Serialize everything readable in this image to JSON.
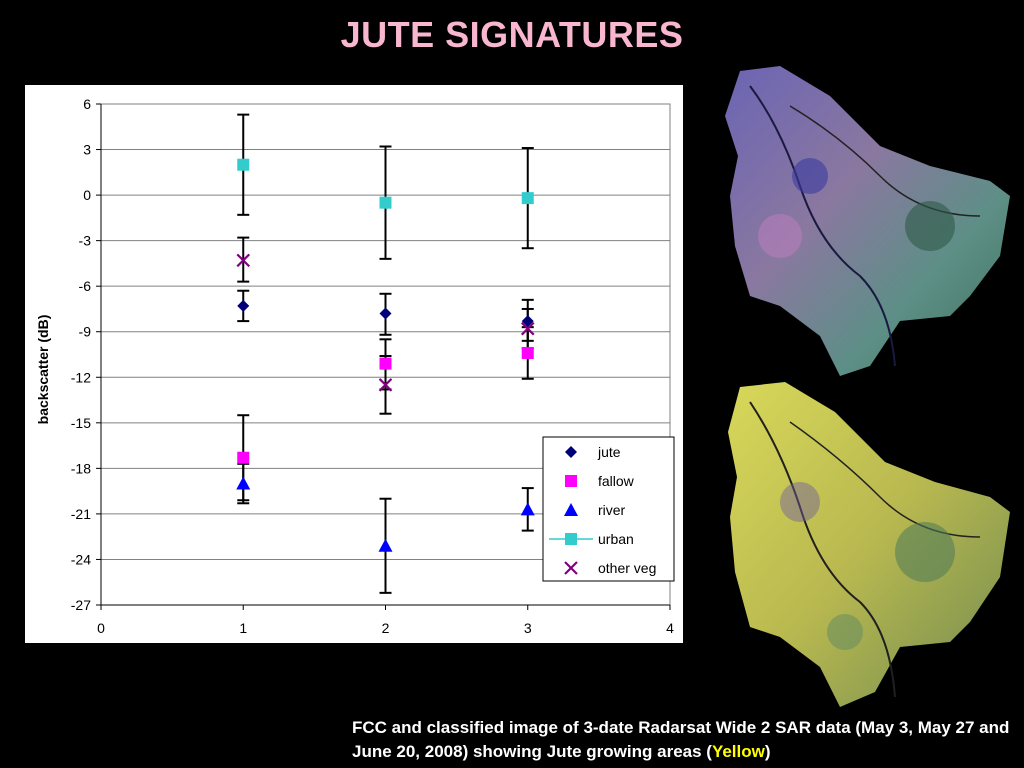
{
  "slide": {
    "title": "JUTE SIGNATURES"
  },
  "chart_data": {
    "type": "scatter",
    "title": "",
    "xlabel": "",
    "ylabel": "backscatter (dB)",
    "xlim": [
      0,
      4
    ],
    "ylim": [
      -27,
      6
    ],
    "xticks": [
      0,
      1,
      2,
      3,
      4
    ],
    "yticks": [
      6,
      3,
      0,
      -3,
      -6,
      -9,
      -12,
      -15,
      -18,
      -21,
      -24,
      -27
    ],
    "grid": "horizontal",
    "legend_position": "bottom-right",
    "series": [
      {
        "name": "jute",
        "marker": "diamond",
        "color": "#00007a",
        "points": [
          {
            "x": 1,
            "y": -7.3,
            "lo": -8.3,
            "hi": -6.3
          },
          {
            "x": 2,
            "y": -7.8,
            "lo": -9.2,
            "hi": -6.5
          },
          {
            "x": 3,
            "y": -8.3,
            "lo": -9.6,
            "hi": -6.9
          }
        ]
      },
      {
        "name": "fallow",
        "marker": "square",
        "color": "#ff00ff",
        "points": [
          {
            "x": 1,
            "y": -17.3,
            "lo": -20.1,
            "hi": -14.5
          },
          {
            "x": 2,
            "y": -11.1,
            "lo": -12.8,
            "hi": -9.5
          },
          {
            "x": 3,
            "y": -10.4,
            "lo": -12.1,
            "hi": -8.7
          }
        ]
      },
      {
        "name": "river",
        "marker": "triangle",
        "color": "#0000ff",
        "points": [
          {
            "x": 1,
            "y": -19.0,
            "lo": -20.3,
            "hi": -17.7
          },
          {
            "x": 2,
            "y": -23.1,
            "lo": -26.2,
            "hi": -20.0
          },
          {
            "x": 3,
            "y": -20.7,
            "lo": -22.1,
            "hi": -19.3
          }
        ]
      },
      {
        "name": "urban",
        "marker": "square-line",
        "color": "#33cccc",
        "points": [
          {
            "x": 1,
            "y": 2.0,
            "lo": -1.3,
            "hi": 5.3
          },
          {
            "x": 2,
            "y": -0.5,
            "lo": -4.2,
            "hi": 3.2
          },
          {
            "x": 3,
            "y": -0.2,
            "lo": -3.5,
            "hi": 3.1
          }
        ]
      },
      {
        "name": "other veg",
        "marker": "x",
        "color": "#800080",
        "points": [
          {
            "x": 1,
            "y": -4.3,
            "lo": -5.7,
            "hi": -2.8
          },
          {
            "x": 2,
            "y": -12.5,
            "lo": -14.4,
            "hi": -10.6
          },
          {
            "x": 3,
            "y": -8.8,
            "lo": -10.1,
            "hi": -7.5
          }
        ]
      }
    ]
  },
  "maps": {
    "top": {
      "name": "fcc-sar-image",
      "fill": "#7a6fa8"
    },
    "bottom": {
      "name": "classified-image",
      "fill": "#c8c84a"
    }
  },
  "caption": {
    "text_before": "FCC and classified image of 3-date Radarsat Wide 2 SAR data (May 3, May 27 and June 20, 2008) showing Jute growing areas (",
    "highlight": "Yellow",
    "text_after": ")"
  }
}
